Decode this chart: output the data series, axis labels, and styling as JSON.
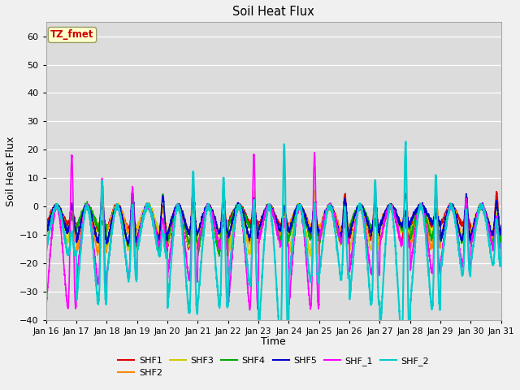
{
  "title": "Soil Heat Flux",
  "xlabel": "Time",
  "ylabel": "Soil Heat Flux",
  "ylim": [
    -40,
    65
  ],
  "yticks": [
    -40,
    -30,
    -20,
    -10,
    0,
    10,
    20,
    30,
    40,
    50,
    60
  ],
  "date_labels": [
    "Jan 16",
    "Jan 17",
    "Jan 18",
    "Jan 19",
    "Jan 20",
    "Jan 21",
    "Jan 22",
    "Jan 23",
    "Jan 24",
    "Jan 25",
    "Jan 26",
    "Jan 27",
    "Jan 28",
    "Jan 29",
    "Jan 30",
    "Jan 31"
  ],
  "series_order": [
    "SHF1",
    "SHF2",
    "SHF3",
    "SHF4",
    "SHF5",
    "SHF_1",
    "SHF_2"
  ],
  "series": {
    "SHF1": {
      "color": "#dd0000",
      "lw": 1.0
    },
    "SHF2": {
      "color": "#ff8800",
      "lw": 1.0
    },
    "SHF3": {
      "color": "#cccc00",
      "lw": 1.0
    },
    "SHF4": {
      "color": "#00aa00",
      "lw": 1.0
    },
    "SHF5": {
      "color": "#0000cc",
      "lw": 1.0
    },
    "SHF_1": {
      "color": "#ff00ff",
      "lw": 1.2
    },
    "SHF_2": {
      "color": "#00cccc",
      "lw": 1.5
    }
  },
  "legend_order": [
    "SHF1",
    "SHF2",
    "SHF3",
    "SHF4",
    "SHF5",
    "SHF_1",
    "SHF_2"
  ],
  "annotation_text": "TZ_fmet",
  "annotation_color": "#cc0000",
  "annotation_bg": "#ffffcc",
  "plot_bg": "#dcdcdc",
  "fig_bg": "#f0f0f0",
  "grid_color": "#ffffff",
  "num_days": 15,
  "ppd": 288
}
